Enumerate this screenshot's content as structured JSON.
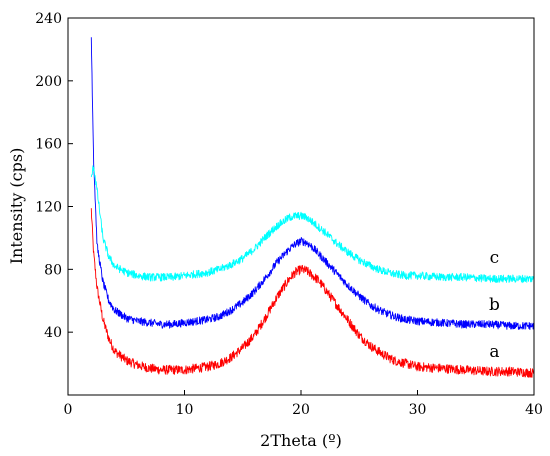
{
  "chart_data": {
    "type": "line",
    "title": "",
    "xlabel": "2Theta (º)",
    "ylabel": "Intensity (cps)",
    "xlim": [
      0,
      40
    ],
    "ylim": [
      0,
      240
    ],
    "xticks": [
      0,
      10,
      20,
      30,
      40
    ],
    "yticks": [
      40,
      80,
      120,
      160,
      200,
      240
    ],
    "grid": false,
    "legend": "none",
    "series": [
      {
        "name": "a",
        "color": "#ff0000",
        "noise": 3,
        "x": [
          2.0,
          2.2,
          2.5,
          3.0,
          3.5,
          4.0,
          5.0,
          6.0,
          7.0,
          8.0,
          9.0,
          10.0,
          11.0,
          12.0,
          13.0,
          14.0,
          15.0,
          16.0,
          17.0,
          18.0,
          19.0,
          19.5,
          20.0,
          20.5,
          21.0,
          21.5,
          22.0,
          23.0,
          24.0,
          25.0,
          26.0,
          27.0,
          28.0,
          29.0,
          30.0,
          32.0,
          34.0,
          36.0,
          38.0,
          40.0
        ],
        "y": [
          118,
          90,
          68,
          48,
          36,
          28,
          22,
          19,
          17,
          16,
          16,
          16,
          17,
          18,
          20,
          24,
          30,
          38,
          50,
          63,
          74,
          78,
          80,
          79,
          76,
          73,
          68,
          58,
          48,
          38,
          31,
          26,
          22,
          20,
          18,
          17,
          16,
          15,
          15,
          14
        ]
      },
      {
        "name": "b",
        "color": "#0000ff",
        "noise": 2.5,
        "x": [
          2.0,
          2.2,
          2.5,
          3.0,
          3.5,
          4.0,
          5.0,
          6.0,
          7.0,
          8.0,
          9.0,
          10.0,
          11.0,
          12.0,
          13.0,
          14.0,
          15.0,
          16.0,
          17.0,
          18.0,
          19.0,
          19.5,
          20.0,
          20.5,
          21.0,
          22.0,
          23.0,
          24.0,
          25.0,
          26.0,
          27.0,
          28.0,
          29.0,
          30.0,
          32.0,
          34.0,
          36.0,
          38.0,
          40.0
        ],
        "y": [
          228,
          150,
          95,
          72,
          60,
          54,
          49,
          47,
          46,
          45,
          45,
          46,
          47,
          48,
          50,
          54,
          59,
          66,
          75,
          85,
          93,
          96,
          98,
          97,
          94,
          86,
          78,
          70,
          63,
          57,
          53,
          50,
          48,
          47,
          46,
          45,
          45,
          44,
          44
        ]
      },
      {
        "name": "c",
        "color": "#00ffff",
        "noise": 2.5,
        "x": [
          2.0,
          2.2,
          2.5,
          3.0,
          3.5,
          4.0,
          5.0,
          6.0,
          7.0,
          8.0,
          9.0,
          10.0,
          11.0,
          12.0,
          13.0,
          14.0,
          15.0,
          16.0,
          17.0,
          18.0,
          19.0,
          19.5,
          20.0,
          20.5,
          21.0,
          22.0,
          23.0,
          24.0,
          25.0,
          26.0,
          27.0,
          28.0,
          29.0,
          30.0,
          32.0,
          34.0,
          36.0,
          38.0,
          40.0
        ],
        "y": [
          138,
          146,
          130,
          100,
          88,
          82,
          78,
          76,
          75,
          75,
          75,
          76,
          77,
          78,
          80,
          83,
          87,
          93,
          101,
          108,
          113,
          114,
          114,
          113,
          110,
          104,
          97,
          91,
          86,
          82,
          79,
          77,
          76,
          76,
          75,
          75,
          74,
          74,
          74
        ]
      }
    ]
  }
}
